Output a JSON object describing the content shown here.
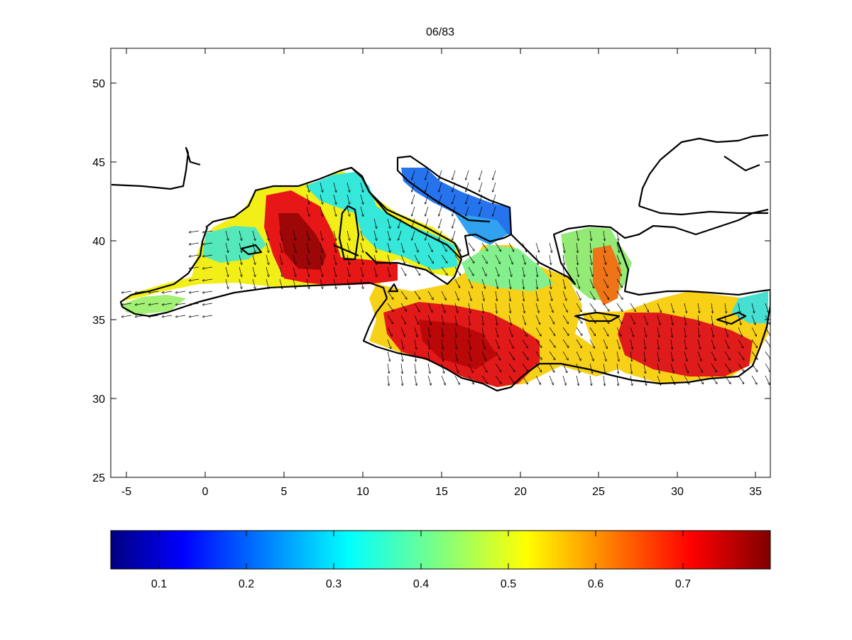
{
  "title": "06/83",
  "map": {
    "x_range": [
      -5.6,
      36.1
    ],
    "y_range": [
      25,
      52.3
    ],
    "x_ticks": [
      "-5",
      "0",
      "5",
      "10",
      "15",
      "20",
      "25",
      "30",
      "35"
    ],
    "y_ticks": [
      "25",
      "30",
      "35",
      "40",
      "45",
      "50"
    ],
    "colormap": "jet",
    "field_range": [
      0.04,
      0.8
    ],
    "vector_field": "wind arrows over sea cells"
  },
  "colorbar": {
    "range": [
      0.04,
      0.8
    ],
    "ticks": [
      "0.1",
      "0.2",
      "0.3",
      "0.4",
      "0.5",
      "0.6",
      "0.7"
    ]
  },
  "colors": {
    "coast": "#000000",
    "frame": "#000000",
    "background": "#ffffff"
  }
}
